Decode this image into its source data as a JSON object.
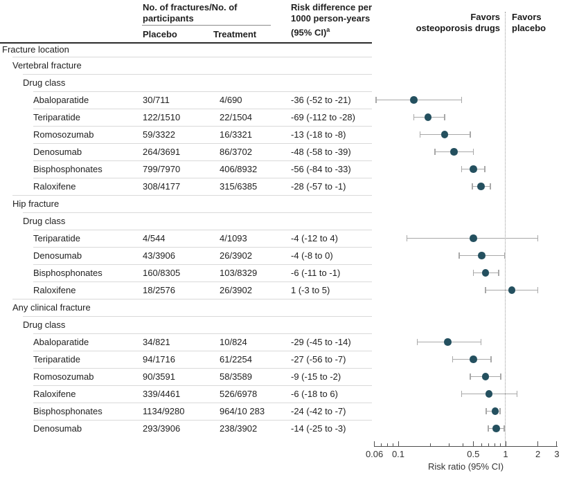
{
  "colors": {
    "marker": "#24505f",
    "ci_line": "#a8a8a8",
    "divider": "#d9d9d9",
    "heavy_rule": "#2b2b2b",
    "axis": "#4d4d4d",
    "reference_dotted": "#999999",
    "text": "#212121"
  },
  "header": {
    "group_line1": "No. of fractures/No. of",
    "group_line2": "participants",
    "placebo": "Placebo",
    "treatment": "Treatment",
    "rd_line1": "Risk difference per",
    "rd_line2": "1000 person-years",
    "rd_line3": "(95% CI)",
    "rd_superscript": "a"
  },
  "plot_labels": {
    "favors_left_line1": "Favors",
    "favors_left_line2": "osteoporosis drugs",
    "favors_right_line1": "Favors",
    "favors_right_line2": "placebo"
  },
  "axis": {
    "title": "Risk ratio (95% CI)",
    "scale": "log",
    "range": [
      0.06,
      3
    ],
    "reference": 1,
    "major_ticks": [
      {
        "value": 0.06,
        "label": "0.06"
      },
      {
        "value": 0.1,
        "label": "0.1"
      },
      {
        "value": 0.5,
        "label": "0.5"
      },
      {
        "value": 1,
        "label": "1"
      },
      {
        "value": 2,
        "label": "2"
      },
      {
        "value": 3,
        "label": "3"
      }
    ],
    "minor_ticks": [
      0.07,
      0.08,
      0.09,
      0.2,
      0.3,
      0.4,
      0.6,
      0.7,
      0.8,
      0.9
    ]
  },
  "chart_data": {
    "type": "forest",
    "x_scale": "log",
    "xlabel": "Risk ratio (95% CI)",
    "xlim": [
      0.06,
      3
    ],
    "legend": {
      "left_of_reference": "Favors osteoporosis drugs",
      "right_of_reference": "Favors placebo"
    },
    "columns": [
      "Placebo",
      "Treatment",
      "Risk difference per 1000 person-years (95% CI)"
    ],
    "rows": [
      {
        "label": "Fracture location",
        "level": 0
      },
      {
        "label": "Vertebral fracture",
        "level": 1
      },
      {
        "label": "Drug class",
        "level": 2
      },
      {
        "label": "Abaloparatide",
        "level": 3,
        "placebo": "30/711",
        "treatment": "4/690",
        "rd": "-36 (-52 to -21)",
        "rr": 0.14,
        "ci_low": 0.062,
        "ci_high": 0.39
      },
      {
        "label": "Teriparatide",
        "level": 3,
        "placebo": "122/1510",
        "treatment": "22/1504",
        "rd": "-69 (-112 to -28)",
        "rr": 0.19,
        "ci_low": 0.14,
        "ci_high": 0.27
      },
      {
        "label": "Romosozumab",
        "level": 3,
        "placebo": "59/3322",
        "treatment": "16/3321",
        "rd": "-13 (-18 to -8)",
        "rr": 0.27,
        "ci_low": 0.16,
        "ci_high": 0.47
      },
      {
        "label": "Denosumab",
        "level": 3,
        "placebo": "264/3691",
        "treatment": "86/3702",
        "rd": "-48 (-58 to -39)",
        "rr": 0.33,
        "ci_low": 0.22,
        "ci_high": 0.5
      },
      {
        "label": "Bisphosphonates",
        "level": 3,
        "placebo": "799/7970",
        "treatment": "406/8932",
        "rd": "-56 (-84 to -33)",
        "rr": 0.5,
        "ci_low": 0.39,
        "ci_high": 0.64
      },
      {
        "label": "Raloxifene",
        "level": 3,
        "placebo": "308/4177",
        "treatment": "315/6385",
        "rd": "-28 (-57 to -1)",
        "rr": 0.59,
        "ci_low": 0.49,
        "ci_high": 0.72
      },
      {
        "label": "Hip fracture",
        "level": 1
      },
      {
        "label": "Drug class",
        "level": 2
      },
      {
        "label": "Teriparatide",
        "level": 3,
        "placebo": "4/544",
        "treatment": "4/1093",
        "rd": "-4 (-12 to 4)",
        "rr": 0.5,
        "ci_low": 0.12,
        "ci_high": 2.0
      },
      {
        "label": "Denosumab",
        "level": 3,
        "placebo": "43/3906",
        "treatment": "26/3902",
        "rd": "-4 (-8 to 0)",
        "rr": 0.6,
        "ci_low": 0.37,
        "ci_high": 0.98
      },
      {
        "label": "Bisphosphonates",
        "level": 3,
        "placebo": "160/8305",
        "treatment": "103/8329",
        "rd": "-6 (-11 to -1)",
        "rr": 0.65,
        "ci_low": 0.5,
        "ci_high": 0.86
      },
      {
        "label": "Raloxifene",
        "level": 3,
        "placebo": "18/2576",
        "treatment": "26/3902",
        "rd": "1 (-3 to 5)",
        "rr": 1.14,
        "ci_low": 0.65,
        "ci_high": 2.0
      },
      {
        "label": "Any clinical fracture",
        "level": 1
      },
      {
        "label": "Drug class",
        "level": 2
      },
      {
        "label": "Abaloparatide",
        "level": 3,
        "placebo": "34/821",
        "treatment": "10/824",
        "rd": "-29 (-45 to -14)",
        "rr": 0.29,
        "ci_low": 0.15,
        "ci_high": 0.59
      },
      {
        "label": "Teriparatide",
        "level": 3,
        "placebo": "94/1716",
        "treatment": "61/2254",
        "rd": "-27 (-56 to -7)",
        "rr": 0.5,
        "ci_low": 0.32,
        "ci_high": 0.73
      },
      {
        "label": "Romosozumab",
        "level": 3,
        "placebo": "90/3591",
        "treatment": "58/3589",
        "rd": "-9 (-15 to -2)",
        "rr": 0.65,
        "ci_low": 0.47,
        "ci_high": 0.9
      },
      {
        "label": "Raloxifene",
        "level": 3,
        "placebo": "339/4461",
        "treatment": "526/6978",
        "rd": "-6 (-18 to 6)",
        "rr": 0.7,
        "ci_low": 0.39,
        "ci_high": 1.28
      },
      {
        "label": "Bisphosphonates",
        "level": 3,
        "placebo": "1134/9280",
        "treatment": "964/10 283",
        "rd": "-24 (-42 to -7)",
        "rr": 0.8,
        "ci_low": 0.66,
        "ci_high": 0.89
      },
      {
        "label": "Denosumab",
        "level": 3,
        "placebo": "293/3906",
        "treatment": "238/3902",
        "rd": "-14 (-25 to -3)",
        "rr": 0.82,
        "ci_low": 0.69,
        "ci_high": 0.97
      }
    ]
  }
}
